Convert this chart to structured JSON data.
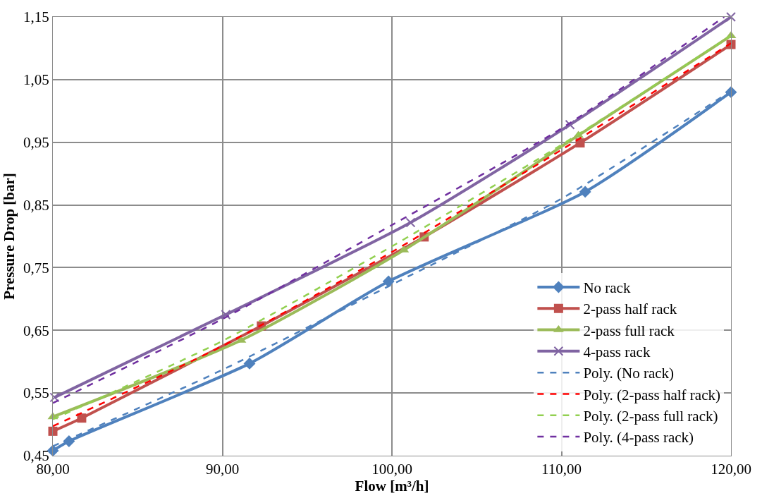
{
  "chart_data": {
    "type": "line",
    "xlabel": "Flow [m³/h]",
    "ylabel": "Pressure Drop [bar]",
    "xlim": [
      80,
      120
    ],
    "ylim": [
      0.45,
      1.15
    ],
    "xticks": [
      {
        "value": 80,
        "label": "80,00"
      },
      {
        "value": 90,
        "label": "90,00"
      },
      {
        "value": 100,
        "label": "100,00"
      },
      {
        "value": 110,
        "label": "110,00"
      },
      {
        "value": 120,
        "label": "120,00"
      }
    ],
    "yticks": [
      {
        "value": 0.45,
        "label": "0,45"
      },
      {
        "value": 0.55,
        "label": "0,55"
      },
      {
        "value": 0.65,
        "label": "0,65"
      },
      {
        "value": 0.75,
        "label": "0,75"
      },
      {
        "value": 0.85,
        "label": "0,85"
      },
      {
        "value": 0.95,
        "label": "0,95"
      },
      {
        "value": 1.05,
        "label": "1,05"
      },
      {
        "value": 1.15,
        "label": "1,15"
      }
    ],
    "grid": true,
    "legend": "bottom right",
    "series": [
      {
        "name": "No rack",
        "color": "#4f81bd",
        "marker": "diamond",
        "line_style": "solid",
        "x": [
          80,
          80.95,
          91.6,
          99.8,
          111.4,
          120
        ],
        "values": [
          0.458,
          0.473,
          0.597,
          0.728,
          0.871,
          1.03
        ]
      },
      {
        "name": "2-pass half rack",
        "color": "#c0504d",
        "marker": "square",
        "line_style": "solid",
        "x": [
          80,
          81.7,
          92.3,
          101.9,
          111.1,
          120
        ],
        "values": [
          0.489,
          0.51,
          0.657,
          0.799,
          0.949,
          1.106
        ]
      },
      {
        "name": "2-pass full rack",
        "color": "#9bbb59",
        "marker": "triangle",
        "line_style": "solid",
        "x": [
          80,
          91.1,
          100.7,
          111.0,
          120
        ],
        "values": [
          0.512,
          0.634,
          0.778,
          0.961,
          1.12
        ]
      },
      {
        "name": "4-pass rack",
        "color": "#8064a2",
        "marker": "cross",
        "line_style": "solid",
        "x": [
          80.1,
          90.2,
          101.1,
          110.5,
          120
        ],
        "values": [
          0.543,
          0.675,
          0.822,
          0.978,
          1.15
        ]
      },
      {
        "name": "Poly. (No rack)",
        "color": "#4f81bd",
        "marker": "none",
        "line_style": "dashed",
        "x": [
          80,
          90,
          100,
          110,
          120
        ],
        "values": [
          0.465,
          0.587,
          0.723,
          0.86,
          1.032
        ]
      },
      {
        "name": "Poly. (2-pass half rack)",
        "color": "#ff0000",
        "marker": "none",
        "line_style": "dashed",
        "x": [
          80,
          90,
          100,
          110,
          120
        ],
        "values": [
          0.497,
          0.625,
          0.775,
          0.938,
          1.108
        ]
      },
      {
        "name": "Poly. (2-pass full rack)",
        "color": "#92d050",
        "marker": "none",
        "line_style": "dashed",
        "x": [
          80,
          90,
          100,
          110,
          120
        ],
        "values": [
          0.508,
          0.633,
          0.784,
          0.946,
          1.12
        ]
      },
      {
        "name": "Poly. (4-pass rack)",
        "color": "#7030a0",
        "marker": "none",
        "line_style": "dashed",
        "x": [
          80,
          90,
          100,
          110,
          119.6
        ],
        "values": [
          0.534,
          0.668,
          0.818,
          0.972,
          1.15
        ]
      }
    ]
  }
}
